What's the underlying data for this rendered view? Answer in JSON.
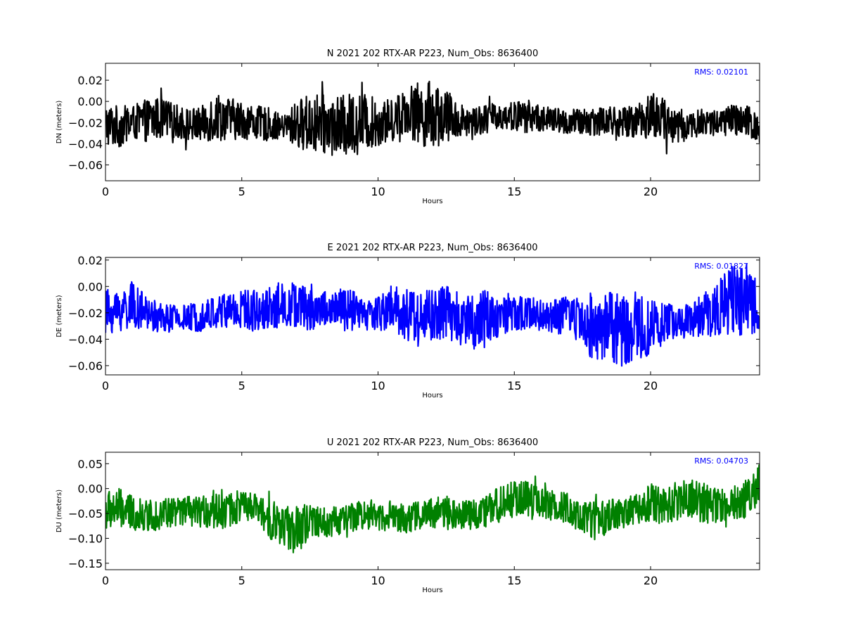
{
  "chart_data": [
    {
      "type": "line",
      "component": "N",
      "title": "N 2021 202 RTX-AR  P223, Num_Obs: 8636400",
      "xlabel": "Hours",
      "ylabel": "DN (meters)",
      "xlim": [
        0,
        24
      ],
      "ylim": [
        -0.075,
        0.036
      ],
      "xticks": [
        0,
        5,
        10,
        15,
        20
      ],
      "yticks": [
        0.02,
        0.0,
        -0.02,
        -0.04,
        -0.06
      ],
      "ytick_labels": [
        "0.02",
        "0.00",
        "−0.02",
        "−0.04",
        "−0.06"
      ],
      "color": "#000000",
      "rms_label": "RMS:  0.02101",
      "rms_color": "#0000ff",
      "series_envelope": {
        "x": [
          0,
          0.5,
          1,
          1.5,
          2,
          2.5,
          3,
          3.5,
          4,
          4.5,
          5,
          5.5,
          6,
          6.5,
          7,
          7.5,
          8,
          8.5,
          9,
          9.5,
          10,
          10.5,
          11,
          11.5,
          12,
          12.5,
          13,
          13.5,
          14,
          14.5,
          15,
          15.5,
          16,
          16.5,
          17,
          17.5,
          18,
          18.5,
          19,
          19.5,
          20,
          20.5,
          21,
          21.5,
          22,
          22.5,
          23,
          23.5,
          24
        ],
        "center": [
          -0.022,
          -0.024,
          -0.02,
          -0.018,
          -0.016,
          -0.018,
          -0.022,
          -0.022,
          -0.014,
          -0.016,
          -0.018,
          -0.02,
          -0.022,
          -0.024,
          -0.022,
          -0.02,
          -0.022,
          -0.024,
          -0.022,
          -0.02,
          -0.02,
          -0.018,
          -0.008,
          -0.012,
          -0.012,
          -0.014,
          -0.018,
          -0.018,
          -0.016,
          -0.014,
          -0.014,
          -0.014,
          -0.016,
          -0.018,
          -0.02,
          -0.02,
          -0.018,
          -0.018,
          -0.02,
          -0.018,
          -0.012,
          -0.018,
          -0.024,
          -0.022,
          -0.02,
          -0.02,
          -0.018,
          -0.02,
          -0.024
        ],
        "amp": [
          0.02,
          0.02,
          0.016,
          0.02,
          0.02,
          0.016,
          0.016,
          0.016,
          0.024,
          0.02,
          0.018,
          0.016,
          0.016,
          0.01,
          0.022,
          0.028,
          0.028,
          0.028,
          0.03,
          0.028,
          0.022,
          0.02,
          0.022,
          0.03,
          0.032,
          0.026,
          0.016,
          0.014,
          0.014,
          0.012,
          0.014,
          0.016,
          0.012,
          0.012,
          0.012,
          0.014,
          0.014,
          0.014,
          0.014,
          0.016,
          0.024,
          0.02,
          0.018,
          0.012,
          0.014,
          0.012,
          0.016,
          0.016,
          0.018
        ]
      }
    },
    {
      "type": "line",
      "component": "E",
      "title": "E 2021 202 RTX-AR  P223, Num_Obs: 8636400",
      "xlabel": "Hours",
      "ylabel": "DE (meters)",
      "xlim": [
        0,
        24
      ],
      "ylim": [
        -0.067,
        0.022
      ],
      "xticks": [
        0,
        5,
        10,
        15,
        20
      ],
      "yticks": [
        0.02,
        0.0,
        -0.02,
        -0.04,
        -0.06
      ],
      "ytick_labels": [
        "0.02",
        "0.00",
        "−0.02",
        "−0.04",
        "−0.06"
      ],
      "color": "#0000ff",
      "rms_label": "RMS:  0.01827",
      "rms_color": "#0000ff",
      "series_envelope": {
        "x": [
          0,
          0.5,
          1,
          1.5,
          2,
          2.5,
          3,
          3.5,
          4,
          4.5,
          5,
          5.5,
          6,
          6.5,
          7,
          7.5,
          8,
          8.5,
          9,
          9.5,
          10,
          10.5,
          11,
          11.5,
          12,
          12.5,
          13,
          13.5,
          14,
          14.5,
          15,
          15.5,
          16,
          16.5,
          17,
          17.5,
          18,
          18.5,
          19,
          19.5,
          20,
          20.5,
          21,
          21.5,
          22,
          22.5,
          23,
          23.5,
          24
        ],
        "center": [
          -0.02,
          -0.018,
          -0.014,
          -0.02,
          -0.024,
          -0.024,
          -0.024,
          -0.022,
          -0.02,
          -0.018,
          -0.018,
          -0.018,
          -0.016,
          -0.014,
          -0.014,
          -0.018,
          -0.016,
          -0.018,
          -0.018,
          -0.022,
          -0.02,
          -0.016,
          -0.02,
          -0.024,
          -0.022,
          -0.02,
          -0.022,
          -0.026,
          -0.024,
          -0.022,
          -0.022,
          -0.02,
          -0.022,
          -0.024,
          -0.02,
          -0.028,
          -0.03,
          -0.03,
          -0.034,
          -0.032,
          -0.03,
          -0.028,
          -0.026,
          -0.026,
          -0.02,
          -0.016,
          -0.01,
          -0.014,
          -0.01
        ],
        "amp": [
          0.018,
          0.016,
          0.018,
          0.012,
          0.012,
          0.01,
          0.01,
          0.012,
          0.012,
          0.016,
          0.016,
          0.016,
          0.016,
          0.018,
          0.018,
          0.016,
          0.014,
          0.016,
          0.016,
          0.012,
          0.014,
          0.018,
          0.02,
          0.022,
          0.02,
          0.022,
          0.018,
          0.022,
          0.022,
          0.014,
          0.014,
          0.014,
          0.012,
          0.014,
          0.014,
          0.022,
          0.026,
          0.028,
          0.03,
          0.028,
          0.02,
          0.016,
          0.014,
          0.012,
          0.018,
          0.022,
          0.026,
          0.026,
          0.022
        ]
      }
    },
    {
      "type": "line",
      "component": "U",
      "title": "U 2021 202 RTX-AR  P223, Num_Obs: 8636400",
      "xlabel": "Hours",
      "ylabel": "DU (meters)",
      "xlim": [
        0,
        24
      ],
      "ylim": [
        -0.163,
        0.073
      ],
      "xticks": [
        0,
        5,
        10,
        15,
        20
      ],
      "yticks": [
        0.05,
        0.0,
        -0.05,
        -0.1,
        -0.15
      ],
      "ytick_labels": [
        "0.05",
        "0.00",
        "−0.05",
        "−0.10",
        "−0.15"
      ],
      "color": "#008000",
      "rms_label": "RMS:  0.04703",
      "rms_color": "#0000ff",
      "series_envelope": {
        "x": [
          0,
          0.5,
          1,
          1.5,
          2,
          2.5,
          3,
          3.5,
          4,
          4.5,
          5,
          5.5,
          6,
          6.5,
          7,
          7.5,
          8,
          8.5,
          9,
          9.5,
          10,
          10.5,
          11,
          11.5,
          12,
          12.5,
          13,
          13.5,
          14,
          14.5,
          15,
          15.5,
          16,
          16.5,
          17,
          17.5,
          18,
          18.5,
          19,
          19.5,
          20,
          20.5,
          21,
          21.5,
          22,
          22.5,
          23,
          23.5,
          24
        ],
        "center": [
          -0.045,
          -0.04,
          -0.05,
          -0.055,
          -0.05,
          -0.048,
          -0.045,
          -0.048,
          -0.04,
          -0.042,
          -0.035,
          -0.04,
          -0.06,
          -0.075,
          -0.085,
          -0.07,
          -0.068,
          -0.065,
          -0.06,
          -0.05,
          -0.055,
          -0.055,
          -0.06,
          -0.055,
          -0.05,
          -0.048,
          -0.05,
          -0.055,
          -0.045,
          -0.03,
          -0.02,
          -0.02,
          -0.03,
          -0.035,
          -0.04,
          -0.06,
          -0.065,
          -0.055,
          -0.05,
          -0.04,
          -0.03,
          -0.035,
          -0.025,
          -0.02,
          -0.03,
          -0.035,
          -0.03,
          -0.02,
          0.01
        ],
        "amp": [
          0.04,
          0.04,
          0.035,
          0.03,
          0.035,
          0.03,
          0.03,
          0.03,
          0.04,
          0.04,
          0.03,
          0.03,
          0.04,
          0.04,
          0.05,
          0.04,
          0.03,
          0.03,
          0.03,
          0.03,
          0.03,
          0.03,
          0.03,
          0.03,
          0.03,
          0.035,
          0.03,
          0.03,
          0.035,
          0.035,
          0.04,
          0.035,
          0.03,
          0.03,
          0.03,
          0.035,
          0.04,
          0.035,
          0.03,
          0.03,
          0.04,
          0.035,
          0.04,
          0.04,
          0.04,
          0.035,
          0.035,
          0.04,
          0.04
        ]
      }
    }
  ]
}
